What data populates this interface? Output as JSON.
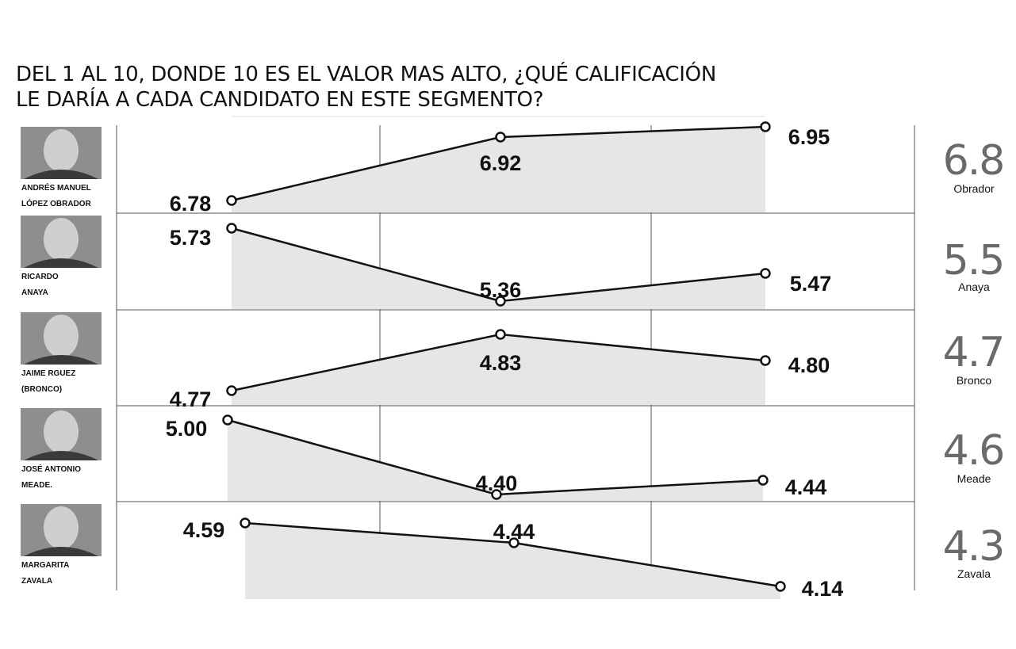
{
  "title": {
    "line1": "DEL 1 AL 10, DONDE 10 ES EL VALOR MAS ALTO, ¿QUÉ  CALIFICACIÓN",
    "line2": "LE DARÍA A CADA CANDIDATO EN ESTE SEGMENTO?"
  },
  "chart_data": {
    "type": "line",
    "grid": true,
    "colors": {
      "line": "#111111",
      "area": "#e6e6e6",
      "grid": "#555555",
      "average": "#6a6a6a"
    },
    "candidates": [
      {
        "photo_label": [
          "ANDRÉS MANUEL",
          "LÓPEZ OBRADOR"
        ],
        "values": [
          6.78,
          6.92,
          6.95
        ],
        "labels": [
          "6.78",
          "6.92",
          "6.95"
        ],
        "average": "6.8",
        "short_name": "Obrador"
      },
      {
        "photo_label": [
          "RICARDO",
          "ANAYA"
        ],
        "values": [
          5.73,
          5.36,
          5.47
        ],
        "labels": [
          "5.73",
          "5.36",
          "5.47"
        ],
        "average": "5.5",
        "short_name": "Anaya"
      },
      {
        "photo_label": [
          "JAIME RGUEZ",
          "(BRONCO)"
        ],
        "values": [
          4.77,
          4.83,
          4.8
        ],
        "labels": [
          "4.77",
          "4.83",
          "4.80"
        ],
        "average": "4.7",
        "short_name": "Bronco"
      },
      {
        "photo_label": [
          "JOSÉ ANTONIO",
          "MEADE."
        ],
        "values": [
          5.0,
          4.4,
          4.44
        ],
        "labels": [
          "5.00",
          "4.40",
          "4.44"
        ],
        "average": "4.6",
        "short_name": "Meade"
      },
      {
        "photo_label": [
          "MARGARITA",
          "ZAVALA"
        ],
        "values": [
          4.59,
          4.44,
          4.14
        ],
        "labels": [
          "4.59",
          "4.44",
          "4.14"
        ],
        "average": "4.3",
        "short_name": "Zavala"
      }
    ]
  }
}
